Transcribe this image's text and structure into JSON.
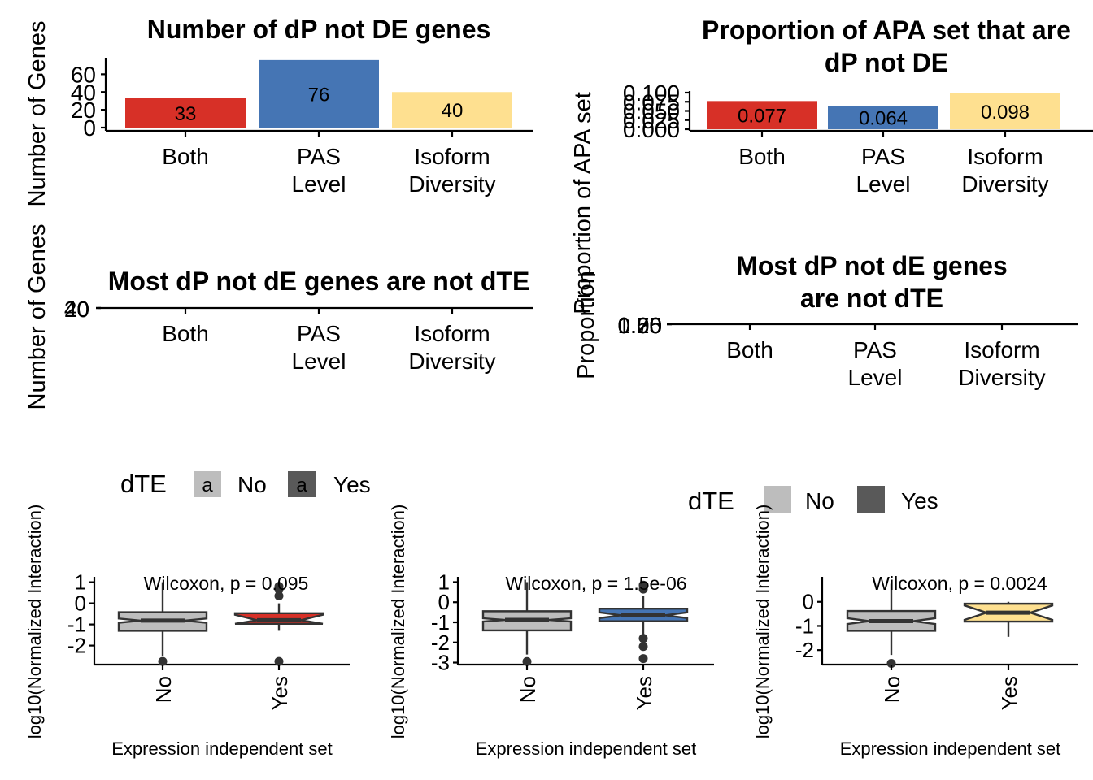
{
  "colors": {
    "both": "#D73027",
    "pas": "#4575B4",
    "isoform": "#FEE090",
    "no": "#BDBDBD",
    "yes": "#595959",
    "box_line": "#333333"
  },
  "chart_data": [
    {
      "type": "bar",
      "title": "Number of dP not DE genes",
      "ylabel": "Number of Genes",
      "categories": [
        "Both",
        "PAS\nLevel",
        "Isoform\nDiversity"
      ],
      "values": [
        33,
        76,
        40
      ],
      "value_labels": [
        "33",
        "76",
        "40"
      ],
      "yticks": [
        "0",
        "20",
        "40",
        "60"
      ],
      "ylim": [
        0,
        80
      ]
    },
    {
      "type": "bar",
      "title": "Proportion of APA set that are\ndP not DE",
      "ylabel": "Proportion of APA set",
      "categories": [
        "Both",
        "PAS\nLevel",
        "Isoform\nDiversity"
      ],
      "values": [
        0.077,
        0.064,
        0.098
      ],
      "value_labels": [
        "0.077",
        "0.064",
        "0.098"
      ],
      "yticks": [
        "0.000",
        "0.025",
        "0.050",
        "0.075",
        "0.100"
      ],
      "ylim": [
        0,
        0.1
      ]
    },
    {
      "type": "bar",
      "title": "Most dP not dE genes are not dTE",
      "ylabel": "Number of Genes",
      "categories": [
        "Both",
        "PAS\nLevel",
        "Isoform\nDiversity"
      ],
      "yticks": [
        "0",
        "20",
        "40"
      ],
      "legend": {
        "title": "dTE",
        "entries": [
          "No",
          "Yes"
        ],
        "key_glyph": "a",
        "placement": "bottom"
      }
    },
    {
      "type": "bar",
      "title": "Most dP not dE genes\nare not dTE",
      "ylabel": "Proportion",
      "categories": [
        "Both",
        "PAS\nLevel",
        "Isoform\nDiversity"
      ],
      "yticks": [
        "0.00",
        "0.25",
        "0.50",
        "0.75",
        "1.00"
      ],
      "legend": {
        "title": "dTE",
        "entries": [
          "No",
          "Yes"
        ],
        "placement": "bottom"
      }
    },
    {
      "type": "box",
      "xlabel": "Expression independent set",
      "ylabel": "log10(Normalized Interaction)",
      "annotation": "Wilcoxon, p = 0.095",
      "categories": [
        "No",
        "Yes"
      ],
      "ylim": [
        -2.9,
        1.1
      ],
      "yticks": [
        1,
        0,
        -1,
        -2
      ],
      "ytick_labels": [
        "1",
        "0",
        "-1",
        "-2"
      ],
      "boxes": [
        {
          "q1": -1.3,
          "median": -0.82,
          "q3": -0.42,
          "whisker_low": -2.5,
          "whisker_high": 1.0,
          "notch": 0.1,
          "outliers": [
            -2.75
          ]
        },
        {
          "q1": -0.97,
          "median": -0.8,
          "q3": -0.47,
          "whisker_low": -1.3,
          "whisker_high": 0.0,
          "notch": 0.26,
          "outliers": [
            0.8,
            0.65,
            0.35,
            -2.75
          ]
        }
      ]
    },
    {
      "type": "box",
      "xlabel": "Expression independent set",
      "ylabel": "log10(Normalized Interaction)",
      "annotation": "Wilcoxon, p = 1.5e-06",
      "categories": [
        "No",
        "Yes"
      ],
      "ylim": [
        -3.1,
        1.1
      ],
      "yticks": [
        1,
        0,
        -1,
        -2,
        -3
      ],
      "ytick_labels": [
        "1",
        "0",
        "-1",
        "-2",
        "-3"
      ],
      "boxes": [
        {
          "q1": -1.4,
          "median": -0.88,
          "q3": -0.45,
          "whisker_low": -2.6,
          "whisker_high": 1.0,
          "notch": 0.08,
          "outliers": [
            -2.95
          ]
        },
        {
          "q1": -0.95,
          "median": -0.65,
          "q3": -0.32,
          "whisker_low": -1.6,
          "whisker_high": 0.3,
          "notch": 0.14,
          "outliers": [
            0.85,
            0.65,
            -1.8,
            -2.2,
            -2.8
          ]
        }
      ]
    },
    {
      "type": "box",
      "xlabel": "Expression independent set",
      "ylabel": "log10(Normalized Interaction)",
      "annotation": "Wilcoxon, p = 0.0024",
      "categories": [
        "No",
        "Yes"
      ],
      "ylim": [
        -2.6,
        0.9
      ],
      "yticks": [
        0,
        -1,
        -2
      ],
      "ytick_labels": [
        "0",
        "-1",
        "-2"
      ],
      "boxes": [
        {
          "q1": -1.2,
          "median": -0.8,
          "q3": -0.38,
          "whisker_low": -2.2,
          "whisker_high": 0.75,
          "notch": 0.12,
          "outliers": [
            -2.55
          ]
        },
        {
          "q1": -0.82,
          "median": -0.45,
          "q3": -0.08,
          "whisker_low": -1.45,
          "whisker_high": 0.0,
          "notch": 0.3,
          "outliers": []
        }
      ]
    }
  ]
}
